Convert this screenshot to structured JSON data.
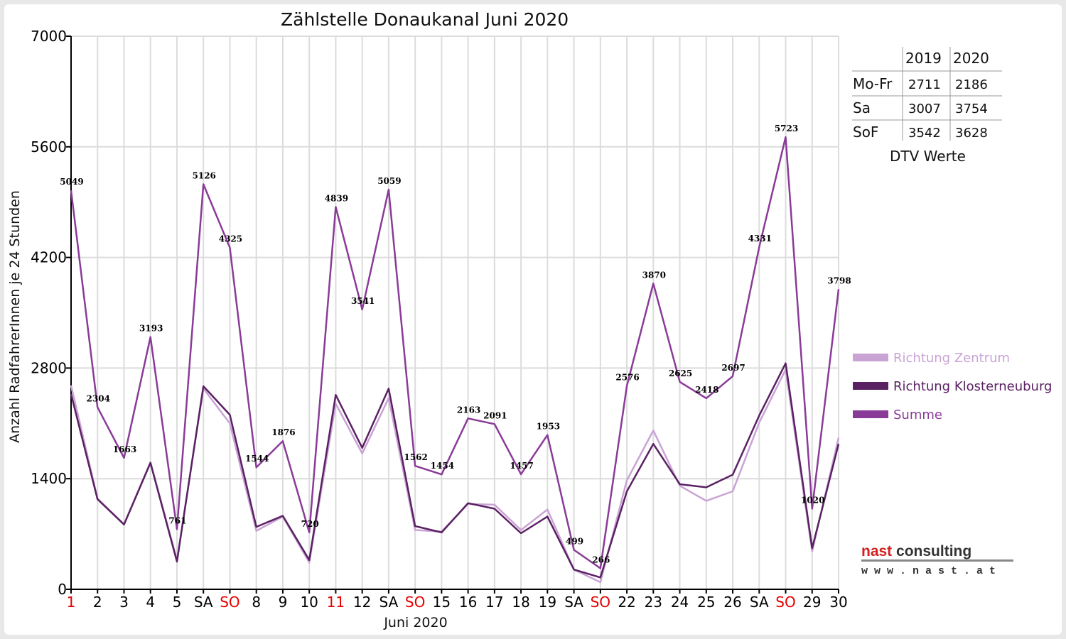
{
  "chart_data": {
    "type": "line",
    "title": "Zählstelle Donaukanal Juni 2020",
    "xlabel": "Juni 2020",
    "ylabel": "Anzahl RadfahrerInnen je 24 Stunden",
    "ylim": [
      0,
      7000
    ],
    "yticks": [
      "0",
      "1400",
      "2800",
      "4200",
      "5600",
      "7000"
    ],
    "grid": true,
    "categories": [
      "1",
      "2",
      "3",
      "4",
      "5",
      "SA",
      "SO",
      "8",
      "9",
      "10",
      "11",
      "12",
      "SA",
      "SO",
      "15",
      "16",
      "17",
      "18",
      "19",
      "SA",
      "SO",
      "22",
      "23",
      "24",
      "25",
      "26",
      "SA",
      "SO",
      "29",
      "30"
    ],
    "holiday_categories": [
      0,
      6,
      10,
      13,
      20,
      27
    ],
    "series": [
      {
        "name": "Richtung Zentrum",
        "color": "#c9a3d4",
        "values": [
          2580,
          1150,
          820,
          1610,
          370,
          2540,
          2100,
          740,
          920,
          340,
          2350,
          1720,
          2420,
          750,
          730,
          1080,
          1070,
          750,
          1010,
          250,
          90,
          1380,
          2010,
          1310,
          1120,
          1240,
          2110,
          2780,
          480,
          1920
        ]
      },
      {
        "name": "Richtung Klosterneuburg",
        "color": "#5a2163",
        "values": [
          2470,
          1140,
          820,
          1600,
          350,
          2570,
          2210,
          790,
          930,
          370,
          2460,
          1790,
          2540,
          800,
          720,
          1090,
          1020,
          710,
          920,
          250,
          150,
          1240,
          1840,
          1330,
          1290,
          1450,
          2200,
          2860,
          520,
          1840
        ]
      },
      {
        "name": "Summe",
        "color": "#8a3b98",
        "values": [
          5049,
          2304,
          1663,
          3193,
          761,
          5126,
          4325,
          1544,
          1876,
          720,
          4839,
          3541,
          5059,
          1562,
          1454,
          2163,
          2091,
          1457,
          1953,
          499,
          266,
          2576,
          3870,
          2625,
          2418,
          2697,
          4331,
          5723,
          1020,
          3798
        ]
      }
    ],
    "data_labels": [
      "5049",
      "2304",
      "1663",
      "3193",
      "761",
      "5126",
      "4325",
      "1544",
      "1876",
      "720",
      "4839",
      "3541",
      "5059",
      "1562",
      "1454",
      "2163",
      "2091",
      "1457",
      "1953",
      "499",
      "266",
      "2576",
      "3870",
      "2625",
      "2418",
      "2697",
      "4331",
      "5723",
      "1020",
      "3798"
    ],
    "legend_position": "right"
  },
  "dtv_table": {
    "headers": [
      "",
      "2019",
      "2020"
    ],
    "rows": [
      [
        "Mo-Fr",
        "2711",
        "2186"
      ],
      [
        "Sa",
        "3007",
        "3754"
      ],
      [
        "SoF",
        "3542",
        "3628"
      ]
    ],
    "caption": "DTV Werte"
  },
  "logo": {
    "name": "nast consulting",
    "url": "w w w . n a s t . a t",
    "accent": "#d21f1f"
  },
  "colors": {
    "holiday": "#e60000",
    "axis": "#000000",
    "grid": "#dcdcdc"
  }
}
